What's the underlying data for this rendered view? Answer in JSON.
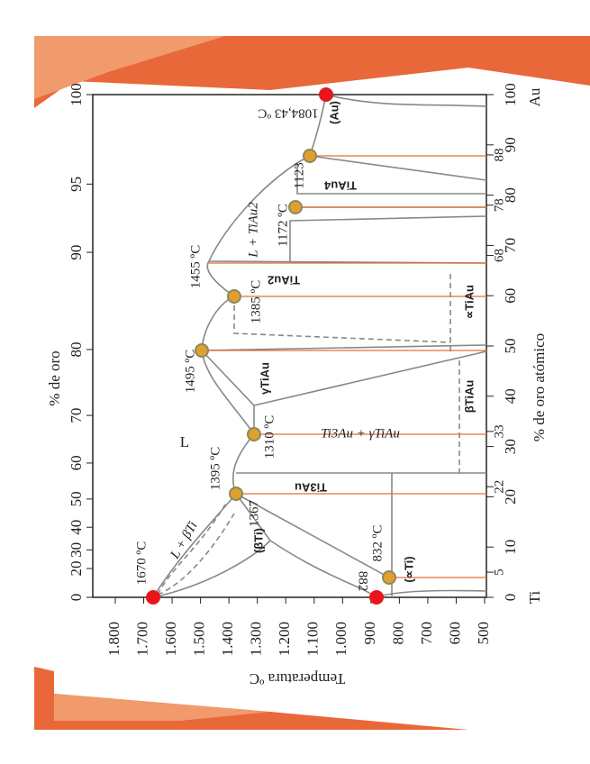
{
  "diagram": {
    "top_axis_label": "% de oro",
    "right_axis_label": "% de oro atómico",
    "bottom_axis_label": "Temperatura ºC",
    "temperature_ticks": [
      {
        "value": 1800,
        "label": "1.800"
      },
      {
        "value": 1700,
        "label": "1.700"
      },
      {
        "value": 1600,
        "label": "1.600"
      },
      {
        "value": 1500,
        "label": "1.500"
      },
      {
        "value": 1400,
        "label": "1.400"
      },
      {
        "value": 1300,
        "label": "1.300"
      },
      {
        "value": 1200,
        "label": "1.200"
      },
      {
        "value": 1100,
        "label": "1.100"
      },
      {
        "value": 1000,
        "label": "1.000"
      },
      900,
      800,
      700,
      600,
      500
    ],
    "atomic_ticks": [
      0,
      10,
      20,
      30,
      40,
      50,
      60,
      70,
      80,
      90,
      100
    ],
    "atomic_marks": [
      5,
      22,
      33,
      68,
      78,
      88
    ],
    "weight_ticks": [
      0,
      20,
      30,
      40,
      50,
      60,
      70,
      80,
      90,
      95,
      100
    ],
    "element_labels": [
      "Ti",
      "Au"
    ],
    "temperature_labels": [
      "1670 ºC",
      "882",
      "832 ºC",
      "1367",
      "1395 ºC",
      "1310 ºC",
      "1495 ºC",
      "1385 ºC",
      "1455 ºC",
      "1172 ºC",
      "1123",
      "1084,43 ºC"
    ],
    "phase_labels": [
      "L",
      "(βTi)",
      "(∝Ti)",
      "(Au)",
      "Ti3Au",
      "γTiAu",
      "βTiAu",
      "∝TiAu",
      "TiAu2",
      "TiAu4",
      "Ti3Au + γTiAu",
      "L + βTi",
      "L + TiAu2"
    ]
  }
}
